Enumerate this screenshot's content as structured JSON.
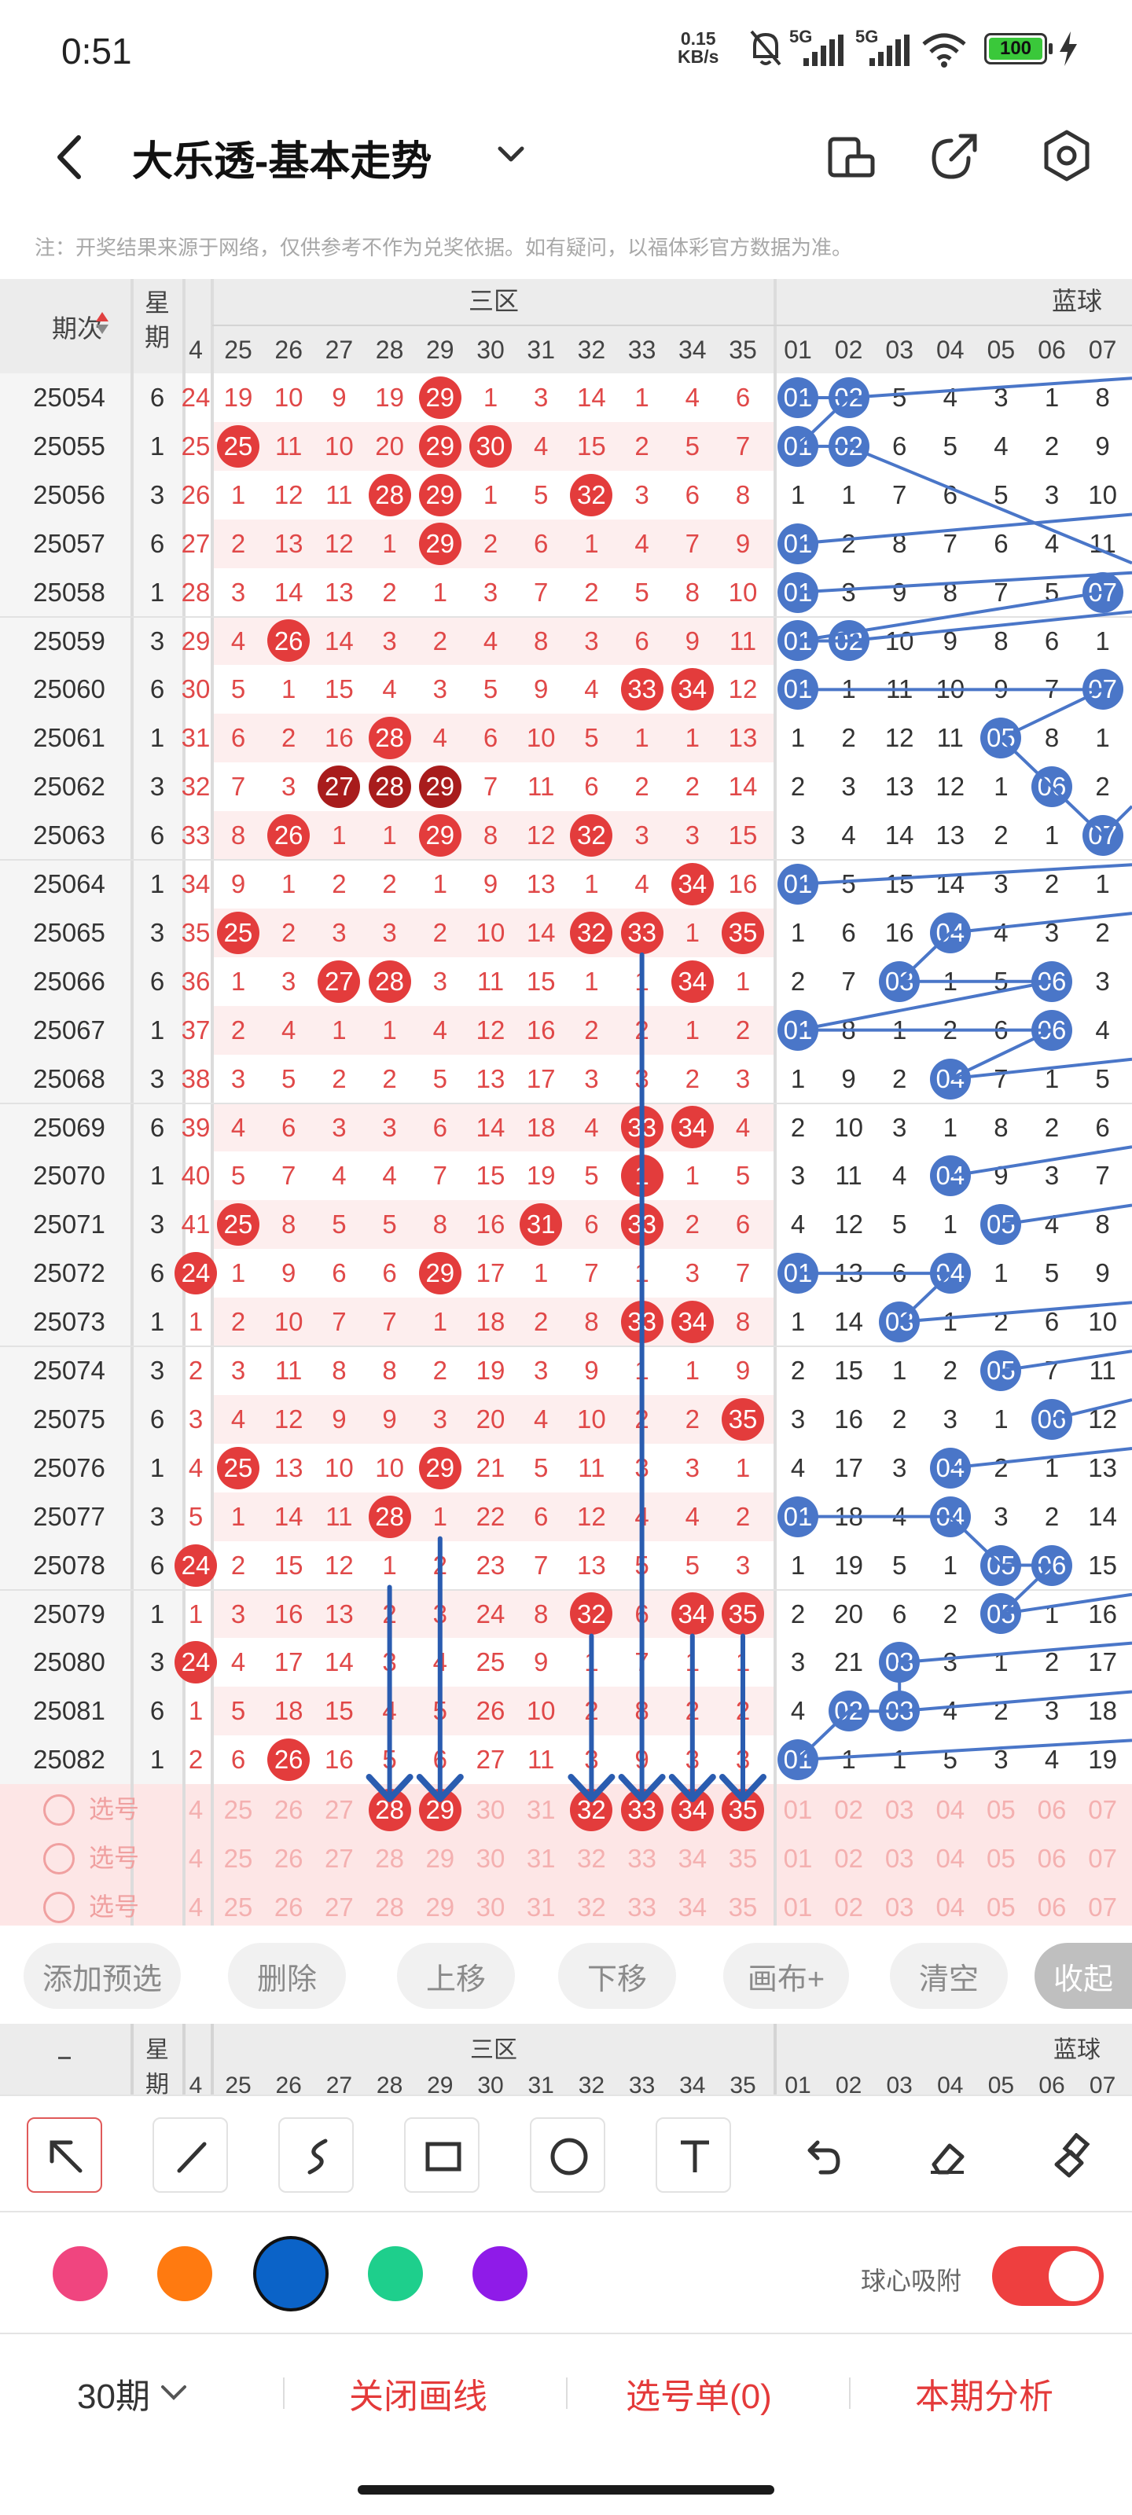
{
  "status_bar": {
    "time": "0:51",
    "net_speed_value": "0.15",
    "net_speed_unit": "KB/s",
    "network_1": "5G",
    "network_2": "5G",
    "battery": "100",
    "icons": [
      "mute-bell-icon",
      "signal-icon",
      "signal-icon",
      "wifi-icon",
      "battery-icon",
      "charging-icon"
    ]
  },
  "header": {
    "title": "大乐透-基本走势",
    "back_icon": "back-arrow-icon",
    "dropdown_icon": "chevron-down-icon",
    "actions": [
      "phone-rotate-icon",
      "share-icon",
      "settings-icon"
    ]
  },
  "notice": "注：开奖结果来源于网络，仅供参考不作为兑奖依据。如有疑问，以福体彩官方数据为准。",
  "table": {
    "period_header": "期次",
    "weekday_header": "星期",
    "front_zone_label": "三区",
    "back_zone_label": "蓝球",
    "front_cols": [
      "4",
      "25",
      "26",
      "27",
      "28",
      "29",
      "30",
      "31",
      "32",
      "33",
      "34",
      "35"
    ],
    "back_cols": [
      "01",
      "02",
      "03",
      "04",
      "05",
      "06",
      "07"
    ],
    "rows": [
      {
        "p": "25054",
        "w": "6",
        "f": [
          "24",
          "19",
          "10",
          "9",
          "19",
          "29",
          "1",
          "3",
          "14",
          "1",
          "4",
          "6"
        ],
        "b": [
          "01",
          "02",
          "5",
          "4",
          "3",
          "1",
          "8"
        ]
      },
      {
        "p": "25055",
        "w": "1",
        "f": [
          "25",
          "25",
          "11",
          "10",
          "20",
          "29",
          "30",
          "4",
          "15",
          "2",
          "5",
          "7"
        ],
        "b": [
          "01",
          "02",
          "6",
          "5",
          "4",
          "2",
          "9"
        ]
      },
      {
        "p": "25056",
        "w": "3",
        "f": [
          "26",
          "1",
          "12",
          "11",
          "28",
          "29",
          "1",
          "5",
          "32",
          "3",
          "6",
          "8"
        ],
        "b": [
          "1",
          "1",
          "7",
          "6",
          "5",
          "3",
          "10"
        ]
      },
      {
        "p": "25057",
        "w": "6",
        "f": [
          "27",
          "2",
          "13",
          "12",
          "1",
          "29",
          "2",
          "6",
          "1",
          "4",
          "7",
          "9"
        ],
        "b": [
          "01",
          "2",
          "8",
          "7",
          "6",
          "4",
          "11"
        ]
      },
      {
        "p": "25058",
        "w": "1",
        "f": [
          "28",
          "3",
          "14",
          "13",
          "2",
          "1",
          "3",
          "7",
          "2",
          "5",
          "8",
          "10"
        ],
        "b": [
          "01",
          "3",
          "9",
          "8",
          "7",
          "5",
          "07"
        ]
      },
      {
        "p": "25059",
        "w": "3",
        "f": [
          "29",
          "4",
          "26",
          "14",
          "3",
          "2",
          "4",
          "8",
          "3",
          "6",
          "9",
          "11"
        ],
        "b": [
          "01",
          "02",
          "10",
          "9",
          "8",
          "6",
          "1"
        ]
      },
      {
        "p": "25060",
        "w": "6",
        "f": [
          "30",
          "5",
          "1",
          "15",
          "4",
          "3",
          "5",
          "9",
          "4",
          "33",
          "34",
          "12"
        ],
        "b": [
          "01",
          "1",
          "11",
          "10",
          "9",
          "7",
          "07"
        ]
      },
      {
        "p": "25061",
        "w": "1",
        "f": [
          "31",
          "6",
          "2",
          "16",
          "28",
          "4",
          "6",
          "10",
          "5",
          "1",
          "1",
          "13"
        ],
        "b": [
          "1",
          "2",
          "12",
          "11",
          "05",
          "8",
          "1"
        ]
      },
      {
        "p": "25062",
        "w": "3",
        "f": [
          "32",
          "7",
          "3",
          "27",
          "28",
          "29",
          "7",
          "11",
          "6",
          "2",
          "2",
          "14"
        ],
        "b": [
          "2",
          "3",
          "13",
          "12",
          "1",
          "06",
          "2"
        ]
      },
      {
        "p": "25063",
        "w": "6",
        "f": [
          "33",
          "8",
          "26",
          "1",
          "1",
          "29",
          "8",
          "12",
          "32",
          "3",
          "3",
          "15"
        ],
        "b": [
          "3",
          "4",
          "14",
          "13",
          "2",
          "1",
          "07"
        ]
      },
      {
        "p": "25064",
        "w": "1",
        "f": [
          "34",
          "9",
          "1",
          "2",
          "2",
          "1",
          "9",
          "13",
          "1",
          "4",
          "34",
          "16"
        ],
        "b": [
          "01",
          "5",
          "15",
          "14",
          "3",
          "2",
          "1"
        ]
      },
      {
        "p": "25065",
        "w": "3",
        "f": [
          "35",
          "25",
          "2",
          "3",
          "3",
          "2",
          "10",
          "14",
          "32",
          "33",
          "1",
          "35"
        ],
        "b": [
          "1",
          "6",
          "16",
          "04",
          "4",
          "3",
          "2"
        ]
      },
      {
        "p": "25066",
        "w": "6",
        "f": [
          "36",
          "1",
          "3",
          "27",
          "28",
          "3",
          "11",
          "15",
          "1",
          "1",
          "34",
          "1"
        ],
        "b": [
          "2",
          "7",
          "03",
          "1",
          "5",
          "06",
          "3"
        ]
      },
      {
        "p": "25067",
        "w": "1",
        "f": [
          "37",
          "2",
          "4",
          "1",
          "1",
          "4",
          "12",
          "16",
          "2",
          "2",
          "1",
          "2"
        ],
        "b": [
          "01",
          "8",
          "1",
          "2",
          "6",
          "06",
          "4"
        ]
      },
      {
        "p": "25068",
        "w": "3",
        "f": [
          "38",
          "3",
          "5",
          "2",
          "2",
          "5",
          "13",
          "17",
          "3",
          "3",
          "2",
          "3"
        ],
        "b": [
          "1",
          "9",
          "2",
          "04",
          "7",
          "1",
          "5"
        ]
      },
      {
        "p": "25069",
        "w": "6",
        "f": [
          "39",
          "4",
          "6",
          "3",
          "3",
          "6",
          "14",
          "18",
          "4",
          "33",
          "34",
          "4"
        ],
        "b": [
          "2",
          "10",
          "3",
          "1",
          "8",
          "2",
          "6"
        ]
      },
      {
        "p": "25070",
        "w": "1",
        "f": [
          "40",
          "5",
          "7",
          "4",
          "4",
          "7",
          "15",
          "19",
          "5",
          "1",
          "1",
          "5"
        ],
        "b": [
          "3",
          "11",
          "4",
          "04",
          "9",
          "3",
          "7"
        ]
      },
      {
        "p": "25071",
        "w": "3",
        "f": [
          "41",
          "25",
          "8",
          "5",
          "5",
          "8",
          "16",
          "31",
          "6",
          "33",
          "2",
          "6"
        ],
        "b": [
          "4",
          "12",
          "5",
          "1",
          "05",
          "4",
          "8"
        ]
      },
      {
        "p": "25072",
        "w": "6",
        "f": [
          "24",
          "1",
          "9",
          "6",
          "6",
          "29",
          "17",
          "1",
          "7",
          "1",
          "3",
          "7"
        ],
        "b": [
          "01",
          "13",
          "6",
          "04",
          "1",
          "5",
          "9"
        ]
      },
      {
        "p": "25073",
        "w": "1",
        "f": [
          "1",
          "2",
          "10",
          "7",
          "7",
          "1",
          "18",
          "2",
          "8",
          "33",
          "34",
          "8"
        ],
        "b": [
          "1",
          "14",
          "03",
          "1",
          "2",
          "6",
          "10"
        ]
      },
      {
        "p": "25074",
        "w": "3",
        "f": [
          "2",
          "3",
          "11",
          "8",
          "8",
          "2",
          "19",
          "3",
          "9",
          "1",
          "1",
          "9"
        ],
        "b": [
          "2",
          "15",
          "1",
          "2",
          "05",
          "7",
          "11"
        ]
      },
      {
        "p": "25075",
        "w": "6",
        "f": [
          "3",
          "4",
          "12",
          "9",
          "9",
          "3",
          "20",
          "4",
          "10",
          "2",
          "2",
          "35"
        ],
        "b": [
          "3",
          "16",
          "2",
          "3",
          "1",
          "06",
          "12"
        ]
      },
      {
        "p": "25076",
        "w": "1",
        "f": [
          "4",
          "25",
          "13",
          "10",
          "10",
          "29",
          "21",
          "5",
          "11",
          "3",
          "3",
          "1"
        ],
        "b": [
          "4",
          "17",
          "3",
          "04",
          "2",
          "1",
          "13"
        ]
      },
      {
        "p": "25077",
        "w": "3",
        "f": [
          "5",
          "1",
          "14",
          "11",
          "28",
          "1",
          "22",
          "6",
          "12",
          "4",
          "4",
          "2"
        ],
        "b": [
          "01",
          "18",
          "4",
          "04",
          "3",
          "2",
          "14"
        ]
      },
      {
        "p": "25078",
        "w": "6",
        "f": [
          "24",
          "2",
          "15",
          "12",
          "1",
          "2",
          "23",
          "7",
          "13",
          "5",
          "5",
          "3"
        ],
        "b": [
          "1",
          "19",
          "5",
          "1",
          "05",
          "06",
          "15"
        ]
      },
      {
        "p": "25079",
        "w": "1",
        "f": [
          "1",
          "3",
          "16",
          "13",
          "2",
          "3",
          "24",
          "8",
          "32",
          "6",
          "34",
          "35"
        ],
        "b": [
          "2",
          "20",
          "6",
          "2",
          "05",
          "1",
          "16"
        ]
      },
      {
        "p": "25080",
        "w": "3",
        "f": [
          "24",
          "4",
          "17",
          "14",
          "3",
          "4",
          "25",
          "9",
          "1",
          "7",
          "1",
          "1"
        ],
        "b": [
          "3",
          "21",
          "03",
          "3",
          "1",
          "2",
          "17"
        ]
      },
      {
        "p": "25081",
        "w": "6",
        "f": [
          "1",
          "5",
          "18",
          "15",
          "4",
          "5",
          "26",
          "10",
          "2",
          "8",
          "2",
          "2"
        ],
        "b": [
          "4",
          "02",
          "03",
          "4",
          "2",
          "3",
          "18"
        ]
      },
      {
        "p": "25082",
        "w": "1",
        "f": [
          "2",
          "6",
          "26",
          "16",
          "5",
          "6",
          "27",
          "11",
          "3",
          "9",
          "3",
          "3"
        ],
        "b": [
          "01",
          "1",
          "1",
          "5",
          "3",
          "4",
          "19"
        ]
      }
    ],
    "pick_row_label": "选号",
    "pick_rows": [
      {
        "f": [
          "4",
          "25",
          "26",
          "27",
          "28",
          "29",
          "30",
          "31",
          "32",
          "33",
          "34",
          "35"
        ],
        "b": [
          "01",
          "02",
          "03",
          "04",
          "05",
          "06",
          "07"
        ]
      },
      {
        "f": [
          "4",
          "25",
          "26",
          "27",
          "28",
          "29",
          "30",
          "31",
          "32",
          "33",
          "34",
          "35"
        ],
        "b": [
          "01",
          "02",
          "03",
          "04",
          "05",
          "06",
          "07"
        ]
      },
      {
        "f": [
          "4",
          "25",
          "26",
          "27",
          "28",
          "29",
          "30",
          "31",
          "32",
          "33",
          "34",
          "35"
        ],
        "b": [
          "01",
          "02",
          "03",
          "04",
          "05",
          "06",
          "07"
        ]
      }
    ],
    "hits": {
      "dark": [
        [
          8,
          3
        ],
        [
          8,
          4
        ],
        [
          8,
          5
        ]
      ],
      "light": [
        [
          0,
          5
        ],
        [
          1,
          1
        ],
        [
          1,
          5
        ],
        [
          1,
          6
        ],
        [
          2,
          4
        ],
        [
          2,
          5
        ],
        [
          2,
          8
        ],
        [
          3,
          5
        ],
        [
          5,
          2
        ],
        [
          6,
          9
        ],
        [
          6,
          10
        ],
        [
          7,
          4
        ],
        [
          9,
          2
        ],
        [
          9,
          5
        ],
        [
          9,
          8
        ],
        [
          10,
          10
        ],
        [
          11,
          1
        ],
        [
          11,
          8
        ],
        [
          11,
          9
        ],
        [
          11,
          11
        ],
        [
          12,
          3
        ],
        [
          12,
          4
        ],
        [
          12,
          10
        ],
        [
          15,
          9
        ],
        [
          15,
          10
        ],
        [
          16,
          9
        ],
        [
          17,
          1
        ],
        [
          17,
          7
        ],
        [
          17,
          9
        ],
        [
          18,
          0
        ],
        [
          18,
          5
        ],
        [
          19,
          9
        ],
        [
          19,
          10
        ],
        [
          21,
          11
        ],
        [
          22,
          1
        ],
        [
          22,
          5
        ],
        [
          23,
          4
        ],
        [
          24,
          0
        ],
        [
          25,
          8
        ],
        [
          25,
          10
        ],
        [
          25,
          11
        ],
        [
          26,
          0
        ],
        [
          28,
          2
        ]
      ],
      "pick_selected": [
        4,
        5,
        8,
        9,
        10,
        11
      ]
    }
  },
  "actions": [
    "添加预选",
    "删除",
    "上移",
    "下移",
    "画布+",
    "清空",
    "收起"
  ],
  "toolbar": {
    "tools": [
      "select-arrow-icon",
      "line-icon",
      "curve-icon",
      "rectangle-icon",
      "circle-icon",
      "text-icon",
      "undo-icon",
      "eraser-icon",
      "clear-brush-icon"
    ],
    "selected": "select-arrow-icon"
  },
  "palette": {
    "colors": [
      "#f0457f",
      "#ff7a10",
      "#0b63c8",
      "#1ecf8c",
      "#8f1be8"
    ],
    "selected": "#0b63c8"
  },
  "snap": {
    "label": "球心吸附",
    "on": true
  },
  "bottom": {
    "periods": "30期",
    "close_lines": "关闭画线",
    "pick_list": "选号单(0)",
    "analysis": "本期分析"
  }
}
